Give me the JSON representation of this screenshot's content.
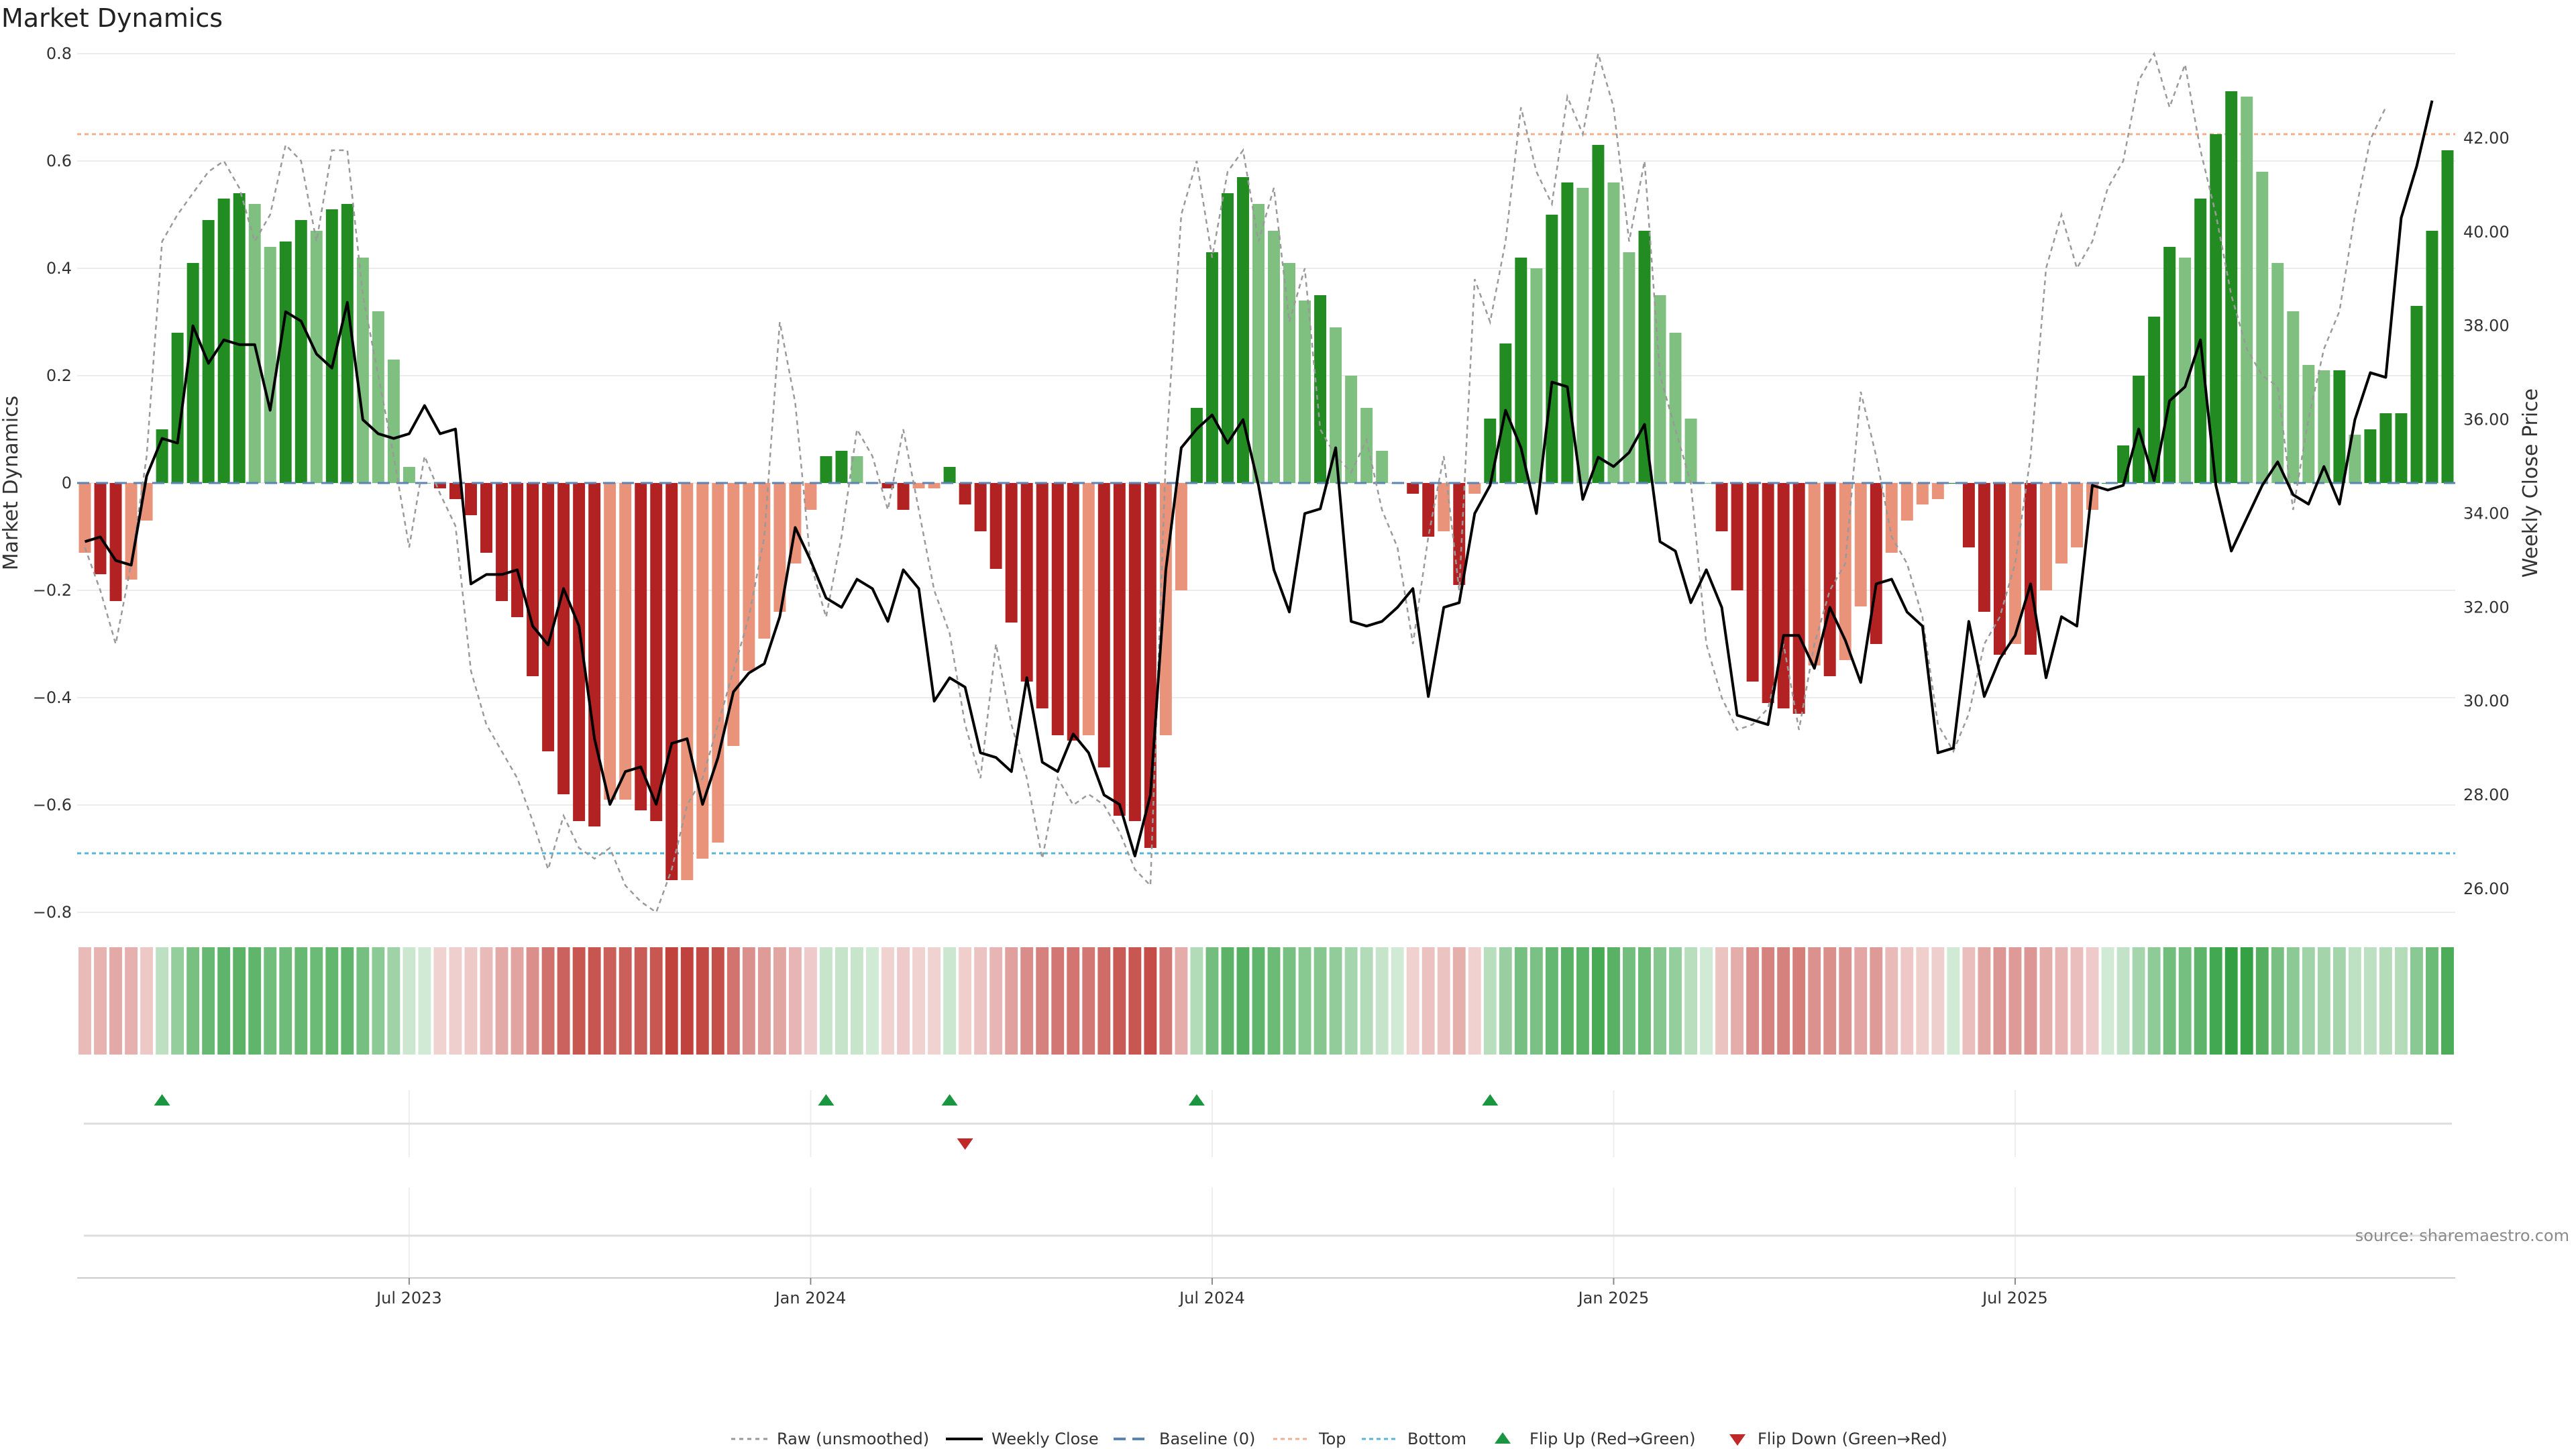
{
  "chart_data": {
    "type": "bar",
    "title": "Market Dynamics",
    "ylabel_left": "Market Dynamics",
    "ylabel_right": "Weekly Close Price",
    "ylim_left": [
      -0.8,
      0.8
    ],
    "yticks_left": [
      "0.8",
      "0.6",
      "0.4",
      "0.2",
      "0",
      "−0.2",
      "−0.4",
      "−0.6",
      "−0.8"
    ],
    "ylim_right": [
      25.5,
      43.8
    ],
    "yticks_right": [
      "42.00",
      "40.00",
      "38.00",
      "36.00",
      "34.00",
      "32.00",
      "30.00",
      "28.00",
      "26.00"
    ],
    "xticks": [
      "Jul 2023",
      "Jan 2024",
      "Jul 2024",
      "Jan 2025",
      "Jul 2025"
    ],
    "top_level": 0.65,
    "bottom_level": -0.69,
    "bar_values": [
      -0.13,
      -0.17,
      -0.22,
      -0.18,
      -0.07,
      0.1,
      0.28,
      0.41,
      0.49,
      0.53,
      0.54,
      0.52,
      0.44,
      0.45,
      0.49,
      0.47,
      0.51,
      0.52,
      0.42,
      0.32,
      0.23,
      0.03,
      0.0,
      -0.01,
      -0.03,
      -0.06,
      -0.13,
      -0.22,
      -0.25,
      -0.36,
      -0.5,
      -0.58,
      -0.63,
      -0.64,
      -0.59,
      -0.59,
      -0.61,
      -0.63,
      -0.74,
      -0.74,
      -0.7,
      -0.67,
      -0.49,
      -0.35,
      -0.29,
      -0.24,
      -0.15,
      -0.05,
      0.05,
      0.06,
      0.05,
      0.0,
      -0.01,
      -0.05,
      -0.01,
      -0.01,
      0.03,
      -0.04,
      -0.09,
      -0.16,
      -0.26,
      -0.37,
      -0.42,
      -0.47,
      -0.48,
      -0.47,
      -0.53,
      -0.62,
      -0.63,
      -0.68,
      -0.47,
      -0.2,
      0.14,
      0.43,
      0.54,
      0.57,
      0.52,
      0.47,
      0.41,
      0.34,
      0.35,
      0.29,
      0.2,
      0.14,
      0.06,
      0.0,
      -0.02,
      -0.1,
      -0.09,
      -0.19,
      -0.02,
      0.12,
      0.26,
      0.42,
      0.4,
      0.5,
      0.56,
      0.55,
      0.63,
      0.56,
      0.43,
      0.47,
      0.35,
      0.28,
      0.12,
      0.0,
      -0.09,
      -0.2,
      -0.37,
      -0.41,
      -0.42,
      -0.43,
      -0.34,
      -0.36,
      -0.33,
      -0.23,
      -0.3,
      -0.13,
      -0.07,
      -0.04,
      -0.03,
      0.0,
      -0.12,
      -0.24,
      -0.32,
      -0.3,
      -0.32,
      -0.2,
      -0.15,
      -0.12,
      -0.05,
      0.0,
      0.07,
      0.2,
      0.31,
      0.44,
      0.42,
      0.53,
      0.65,
      0.73,
      0.72,
      0.58,
      0.41,
      0.32,
      0.22,
      0.21,
      0.21,
      0.09,
      0.1,
      0.13,
      0.13,
      0.33,
      0.47,
      0.62
    ],
    "raw_values": [
      -0.12,
      -0.2,
      -0.3,
      -0.15,
      0.05,
      0.45,
      0.5,
      0.54,
      0.58,
      0.6,
      0.55,
      0.45,
      0.5,
      0.63,
      0.6,
      0.45,
      0.62,
      0.62,
      0.35,
      0.2,
      0.05,
      -0.12,
      0.05,
      -0.02,
      -0.08,
      -0.35,
      -0.45,
      -0.5,
      -0.55,
      -0.63,
      -0.72,
      -0.62,
      -0.68,
      -0.7,
      -0.68,
      -0.75,
      -0.78,
      -0.8,
      -0.72,
      -0.6,
      -0.55,
      -0.45,
      -0.35,
      -0.25,
      -0.1,
      0.3,
      0.15,
      -0.15,
      -0.25,
      -0.1,
      0.1,
      0.05,
      -0.05,
      0.1,
      -0.05,
      -0.2,
      -0.28,
      -0.45,
      -0.55,
      -0.3,
      -0.45,
      -0.55,
      -0.7,
      -0.55,
      -0.6,
      -0.58,
      -0.6,
      -0.65,
      -0.72,
      -0.75,
      0.05,
      0.5,
      0.6,
      0.42,
      0.58,
      0.62,
      0.45,
      0.55,
      0.3,
      0.4,
      0.1,
      0.05,
      0.02,
      0.08,
      -0.05,
      -0.12,
      -0.3,
      -0.1,
      0.05,
      -0.2,
      0.38,
      0.3,
      0.45,
      0.7,
      0.58,
      0.52,
      0.72,
      0.65,
      0.8,
      0.7,
      0.45,
      0.6,
      0.2,
      0.1,
      0.0,
      -0.3,
      -0.4,
      -0.46,
      -0.45,
      -0.42,
      -0.3,
      -0.46,
      -0.3,
      -0.2,
      -0.15,
      0.17,
      0.05,
      -0.1,
      -0.15,
      -0.25,
      -0.45,
      -0.5,
      -0.43,
      -0.3,
      -0.25,
      -0.15,
      0.05,
      0.4,
      0.5,
      0.4,
      0.45,
      0.55,
      0.6,
      0.75,
      0.8,
      0.7,
      0.78,
      0.62,
      0.5,
      0.35,
      0.25,
      0.2,
      0.18,
      -0.05,
      0.12,
      0.25,
      0.32,
      0.5,
      0.64,
      0.7
    ],
    "close_values": [
      33.4,
      33.5,
      33.0,
      32.9,
      34.8,
      35.6,
      35.5,
      38.0,
      37.2,
      37.7,
      37.6,
      37.6,
      36.2,
      38.3,
      38.1,
      37.4,
      37.1,
      38.5,
      36.0,
      35.7,
      35.6,
      35.7,
      36.3,
      35.7,
      35.8,
      32.5,
      32.7,
      32.7,
      32.8,
      31.6,
      31.2,
      32.4,
      31.6,
      29.2,
      27.8,
      28.5,
      28.6,
      27.8,
      29.1,
      29.2,
      27.8,
      28.8,
      30.2,
      30.6,
      30.8,
      31.8,
      33.7,
      33.0,
      32.2,
      32.0,
      32.6,
      32.4,
      31.7,
      32.8,
      32.4,
      30.0,
      30.5,
      30.3,
      28.9,
      28.8,
      28.5,
      30.5,
      28.7,
      28.5,
      29.3,
      28.9,
      28.0,
      27.8,
      26.7,
      28.0,
      32.8,
      35.4,
      35.8,
      36.1,
      35.5,
      36.0,
      34.6,
      32.8,
      31.9,
      34.0,
      34.1,
      35.4,
      31.7,
      31.6,
      31.7,
      32.0,
      32.4,
      30.1,
      32.0,
      32.1,
      34.0,
      34.6,
      36.2,
      35.4,
      34.0,
      36.8,
      36.7,
      34.3,
      35.2,
      35.0,
      35.3,
      35.9,
      33.4,
      33.2,
      32.1,
      32.8,
      32.0,
      29.7,
      29.6,
      29.5,
      31.4,
      31.4,
      30.7,
      32.0,
      31.3,
      30.4,
      32.5,
      32.6,
      31.9,
      31.6,
      28.9,
      29.0,
      31.7,
      30.1,
      30.9,
      31.4,
      32.5,
      30.5,
      31.8,
      31.6,
      34.6,
      34.5,
      34.6,
      35.8,
      34.7,
      36.4,
      36.7,
      37.7,
      34.6,
      33.2,
      33.9,
      34.6,
      35.1,
      34.4,
      34.2,
      35.0,
      34.2,
      36.0,
      37.0,
      36.9,
      40.3,
      41.4,
      42.8
    ]
  },
  "legend": {
    "raw": "Raw (unsmoothed)",
    "close": "Weekly Close",
    "baseline": "Baseline (0)",
    "top": "Top",
    "bottom": "Bottom",
    "flip_up": "Flip Up (Red→Green)",
    "flip_down": "Flip Down (Green→Red)"
  },
  "source": "source: sharemaestro.com",
  "colors": {
    "strong_green": "#228b22",
    "light_green": "#7fbf7f",
    "strong_red": "#b22222",
    "light_red": "#e8937a",
    "top_line": "#f0b090",
    "bottom_line": "#5ab4d6",
    "baseline": "#5a84b5",
    "flip_up": "#1a9641",
    "flip_down": "#c0282a"
  }
}
